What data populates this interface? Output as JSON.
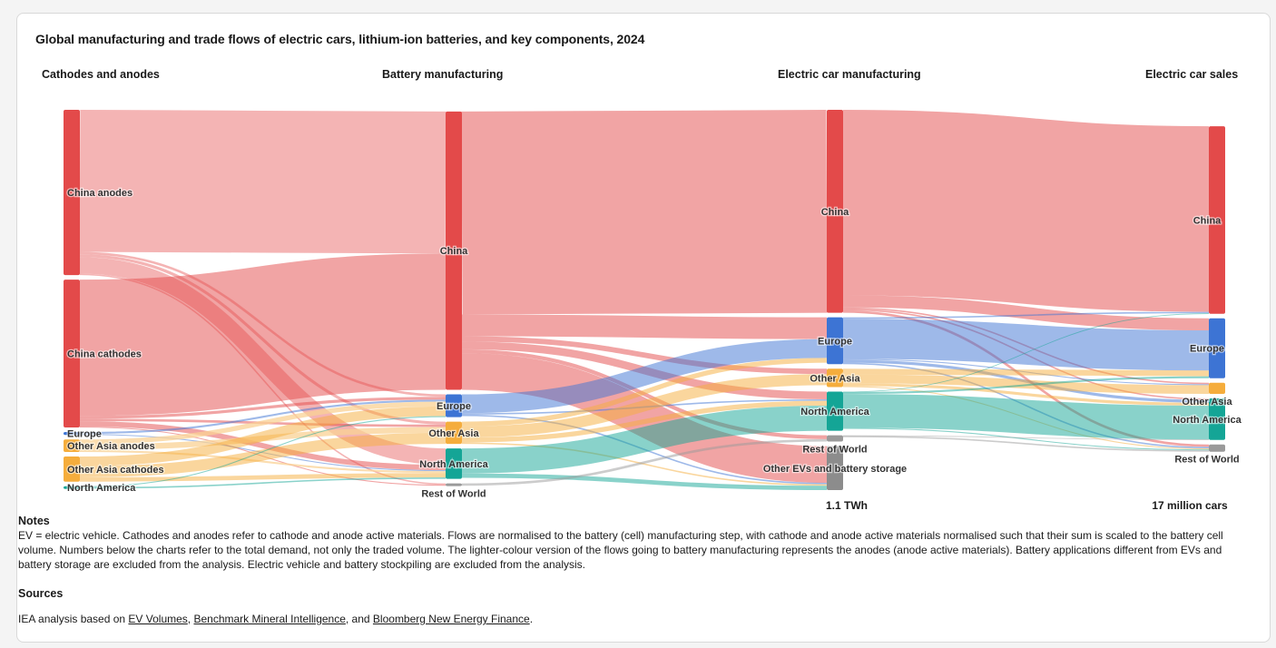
{
  "title": "Global manufacturing and trade flows of electric cars, lithium-ion batteries, and key components, 2024",
  "columns": [
    "Cathodes and anodes",
    "Battery manufacturing",
    "Electric car manufacturing",
    "Electric car sales"
  ],
  "totals": {
    "battery_total": "1.1 TWh",
    "sales_total": "17 million cars"
  },
  "notes": {
    "heading": "Notes",
    "text": "EV = electric vehicle. Cathodes and anodes refer to cathode and anode active materials. Flows are normalised to the battery (cell) manufacturing step, with cathode and anode active materials normalised such that their sum is scaled to the battery cell volume. Numbers below the charts refer to the total demand, not only the traded volume. The lighter-colour version of the flows going to battery manufacturing represents the anodes (anode active materials). Battery applications different from EVs and battery storage are excluded from the analysis. Electric vehicle and battery stockpiling are excluded from the analysis."
  },
  "sources": {
    "heading": "Sources",
    "prefix": "IEA analysis based on ",
    "link1": "EV Volumes",
    "sep1": ", ",
    "link2": "Benchmark Mineral Intelligence",
    "sep2": ", and ",
    "link3": "Bloomberg New Energy Finance",
    "suffix": "."
  },
  "colors": {
    "China": "#e34a4a",
    "Europe": "#3d74d4",
    "Other Asia": "#f5ad3c",
    "North America": "#14a596",
    "Rest of World": "#9a9a9a",
    "Other EVs and battery storage": "#8c8c8c"
  },
  "chart_data": {
    "type": "sankey",
    "title": "Global manufacturing and trade flows of electric cars, lithium-ion batteries, and key components, 2024",
    "unit": "share of battery (cell) volume, normalised",
    "nodes": [
      {
        "id": "c_cn_an",
        "label": "China anodes",
        "stage": 0,
        "region": "China"
      },
      {
        "id": "c_cn_ca",
        "label": "China cathodes",
        "stage": 0,
        "region": "China"
      },
      {
        "id": "c_eu",
        "label": "Europe",
        "stage": 0,
        "region": "Europe"
      },
      {
        "id": "c_oa_an",
        "label": "Other Asia anodes",
        "stage": 0,
        "region": "Other Asia"
      },
      {
        "id": "c_oa_ca",
        "label": "Other Asia cathodes",
        "stage": 0,
        "region": "Other Asia"
      },
      {
        "id": "c_na",
        "label": "North America",
        "stage": 0,
        "region": "North America"
      },
      {
        "id": "b_cn",
        "label": "China",
        "stage": 1,
        "region": "China"
      },
      {
        "id": "b_eu",
        "label": "Europe",
        "stage": 1,
        "region": "Europe"
      },
      {
        "id": "b_oa",
        "label": "Other Asia",
        "stage": 1,
        "region": "Other Asia"
      },
      {
        "id": "b_na",
        "label": "North America",
        "stage": 1,
        "region": "North America"
      },
      {
        "id": "b_rw",
        "label": "Rest of World",
        "stage": 1,
        "region": "Rest of World"
      },
      {
        "id": "m_cn",
        "label": "China",
        "stage": 2,
        "region": "China"
      },
      {
        "id": "m_eu",
        "label": "Europe",
        "stage": 2,
        "region": "Europe"
      },
      {
        "id": "m_oa",
        "label": "Other Asia",
        "stage": 2,
        "region": "Other Asia"
      },
      {
        "id": "m_na",
        "label": "North America",
        "stage": 2,
        "region": "North America"
      },
      {
        "id": "m_rw",
        "label": "Rest of World",
        "stage": 2,
        "region": "Rest of World"
      },
      {
        "id": "m_ot",
        "label": "Other EVs and battery storage",
        "stage": 2,
        "region": "Other EVs and battery storage"
      },
      {
        "id": "s_cn",
        "label": "China",
        "stage": 3,
        "region": "China"
      },
      {
        "id": "s_eu",
        "label": "Europe",
        "stage": 3,
        "region": "Europe"
      },
      {
        "id": "s_oa",
        "label": "Other Asia",
        "stage": 3,
        "region": "Other Asia"
      },
      {
        "id": "s_na",
        "label": "North America",
        "stage": 3,
        "region": "North America"
      },
      {
        "id": "s_rw",
        "label": "Rest of World",
        "stage": 3,
        "region": "Rest of World"
      }
    ],
    "links": [
      {
        "source": "c_cn_an",
        "target": "b_cn",
        "value": 29.4,
        "anode": true
      },
      {
        "source": "c_cn_an",
        "target": "b_eu",
        "value": 0.5,
        "anode": true
      },
      {
        "source": "c_cn_an",
        "target": "b_oa",
        "value": 0.6,
        "anode": true
      },
      {
        "source": "c_cn_an",
        "target": "b_na",
        "value": 3.4,
        "anode": true
      },
      {
        "source": "c_cn_an",
        "target": "b_rw",
        "value": 0.3,
        "anode": true
      },
      {
        "source": "c_cn_ca",
        "target": "b_cn",
        "value": 28.2
      },
      {
        "source": "c_cn_ca",
        "target": "b_eu",
        "value": 0.6
      },
      {
        "source": "c_cn_ca",
        "target": "b_oa",
        "value": 0.5
      },
      {
        "source": "c_cn_ca",
        "target": "b_na",
        "value": 1.1
      },
      {
        "source": "c_cn_ca",
        "target": "b_rw",
        "value": 0.2
      },
      {
        "source": "c_eu",
        "target": "b_eu",
        "value": 0.4
      },
      {
        "source": "c_eu",
        "target": "b_na",
        "value": 0.2
      },
      {
        "source": "c_oa_an",
        "target": "b_eu",
        "value": 1.0,
        "anode": true
      },
      {
        "source": "c_oa_an",
        "target": "b_oa",
        "value": 1.2,
        "anode": true
      },
      {
        "source": "c_oa_an",
        "target": "b_na",
        "value": 0.4,
        "anode": true
      },
      {
        "source": "c_oa_ca",
        "target": "b_eu",
        "value": 2.0
      },
      {
        "source": "c_oa_ca",
        "target": "b_oa",
        "value": 2.3
      },
      {
        "source": "c_oa_ca",
        "target": "b_na",
        "value": 0.9
      },
      {
        "source": "c_na",
        "target": "b_na",
        "value": 0.3
      },
      {
        "source": "c_na",
        "target": "b_eu",
        "value": 0.2
      },
      {
        "source": "b_cn",
        "target": "m_cn",
        "value": 42.0
      },
      {
        "source": "b_cn",
        "target": "m_eu",
        "value": 4.5
      },
      {
        "source": "b_cn",
        "target": "m_oa",
        "value": 1.1
      },
      {
        "source": "b_cn",
        "target": "m_na",
        "value": 1.6
      },
      {
        "source": "b_cn",
        "target": "m_rw",
        "value": 0.8
      },
      {
        "source": "b_cn",
        "target": "m_ot",
        "value": 7.6
      },
      {
        "source": "b_eu",
        "target": "m_eu",
        "value": 3.9
      },
      {
        "source": "b_eu",
        "target": "m_na",
        "value": 0.3
      },
      {
        "source": "b_eu",
        "target": "m_ot",
        "value": 0.3
      },
      {
        "source": "b_oa",
        "target": "m_eu",
        "value": 1.0
      },
      {
        "source": "b_oa",
        "target": "m_oa",
        "value": 2.3
      },
      {
        "source": "b_oa",
        "target": "m_na",
        "value": 1.0
      },
      {
        "source": "b_oa",
        "target": "m_ot",
        "value": 0.3
      },
      {
        "source": "b_na",
        "target": "m_na",
        "value": 5.2
      },
      {
        "source": "b_na",
        "target": "m_ot",
        "value": 0.9
      },
      {
        "source": "b_rw",
        "target": "m_rw",
        "value": 0.5
      },
      {
        "source": "m_cn",
        "target": "s_cn",
        "value": 38.4
      },
      {
        "source": "m_cn",
        "target": "s_eu",
        "value": 2.5
      },
      {
        "source": "m_cn",
        "target": "s_oa",
        "value": 0.3
      },
      {
        "source": "m_cn",
        "target": "s_na",
        "value": 0.3
      },
      {
        "source": "m_cn",
        "target": "s_rw",
        "value": 0.5
      },
      {
        "source": "m_eu",
        "target": "s_cn",
        "value": 0.3
      },
      {
        "source": "m_eu",
        "target": "s_eu",
        "value": 8.3
      },
      {
        "source": "m_eu",
        "target": "s_oa",
        "value": 0.2
      },
      {
        "source": "m_eu",
        "target": "s_na",
        "value": 0.6
      },
      {
        "source": "m_eu",
        "target": "s_rw",
        "value": 0.3
      },
      {
        "source": "m_oa",
        "target": "s_eu",
        "value": 1.2
      },
      {
        "source": "m_oa",
        "target": "s_oa",
        "value": 1.8
      },
      {
        "source": "m_oa",
        "target": "s_na",
        "value": 0.6
      },
      {
        "source": "m_oa",
        "target": "s_rw",
        "value": 0.2
      },
      {
        "source": "m_na",
        "target": "s_cn",
        "value": 0.1
      },
      {
        "source": "m_na",
        "target": "s_eu",
        "value": 0.4
      },
      {
        "source": "m_na",
        "target": "s_na",
        "value": 7.0
      },
      {
        "source": "m_na",
        "target": "s_rw",
        "value": 0.2
      },
      {
        "source": "m_rw",
        "target": "s_rw",
        "value": 0.3
      },
      {
        "source": "m_rw",
        "target": "s_na",
        "value": 0.1
      }
    ]
  }
}
